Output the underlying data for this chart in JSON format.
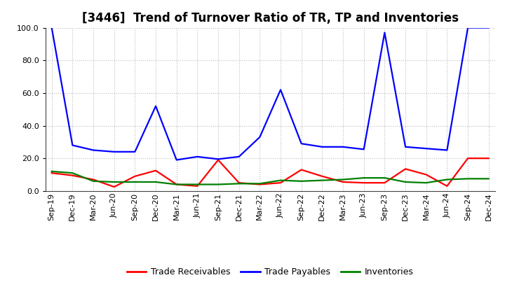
{
  "title": "[3446]  Trend of Turnover Ratio of TR, TP and Inventories",
  "x_labels": [
    "Sep-19",
    "Dec-19",
    "Mar-20",
    "Jun-20",
    "Sep-20",
    "Dec-20",
    "Mar-21",
    "Jun-21",
    "Sep-21",
    "Dec-21",
    "Mar-22",
    "Jun-22",
    "Sep-22",
    "Dec-22",
    "Mar-23",
    "Jun-23",
    "Sep-23",
    "Dec-23",
    "Mar-24",
    "Jun-24",
    "Sep-24",
    "Dec-24"
  ],
  "trade_receivables": [
    11.0,
    9.5,
    7.0,
    2.5,
    9.0,
    12.5,
    4.0,
    3.0,
    19.0,
    5.0,
    4.0,
    5.0,
    13.0,
    9.0,
    5.5,
    5.0,
    5.0,
    13.5,
    10.0,
    3.0,
    20.0,
    20.0
  ],
  "trade_payables": [
    100.0,
    28.0,
    25.0,
    24.0,
    24.0,
    52.0,
    19.0,
    21.0,
    19.5,
    21.0,
    33.0,
    62.0,
    29.0,
    27.0,
    27.0,
    25.5,
    97.0,
    27.0,
    26.0,
    25.0,
    100.0,
    100.0
  ],
  "inventories": [
    12.0,
    11.0,
    6.0,
    5.5,
    5.5,
    5.5,
    4.0,
    4.0,
    4.0,
    4.5,
    4.5,
    6.5,
    6.0,
    6.5,
    7.0,
    8.0,
    8.0,
    5.5,
    5.0,
    7.0,
    7.5,
    7.5
  ],
  "tr_color": "#ff0000",
  "tp_color": "#0000ff",
  "inv_color": "#008000",
  "ylim": [
    0.0,
    100.0
  ],
  "yticks": [
    0.0,
    20.0,
    40.0,
    60.0,
    80.0,
    100.0
  ],
  "legend_labels": [
    "Trade Receivables",
    "Trade Payables",
    "Inventories"
  ],
  "background_color": "#ffffff",
  "grid_color": "#bbbbbb",
  "title_fontsize": 12,
  "tick_fontsize": 8,
  "legend_fontsize": 9
}
